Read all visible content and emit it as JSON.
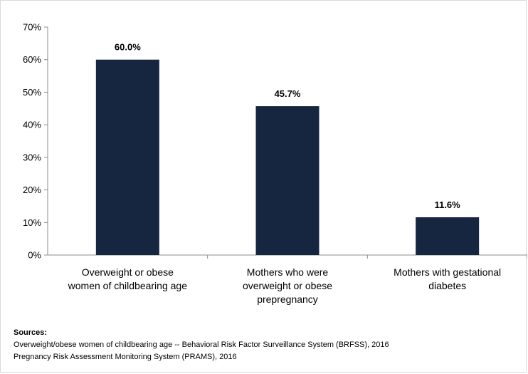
{
  "chart_data": {
    "type": "bar",
    "categories": [
      [
        "Overweight or obese",
        "women of childbearing age"
      ],
      [
        "Mothers who were",
        "overweight or obese",
        "prepregnancy"
      ],
      [
        "Mothers with gestational",
        "diabetes"
      ]
    ],
    "values": [
      60.0,
      45.7,
      11.6
    ],
    "data_labels": [
      "60.0%",
      "45.7%",
      "11.6%"
    ],
    "ylim": [
      0,
      70
    ],
    "yticks": [
      "0%",
      "10%",
      "20%",
      "30%",
      "40%",
      "50%",
      "60%",
      "70%"
    ],
    "bar_color": "#162640",
    "grid": false,
    "title": "",
    "xlabel": "",
    "ylabel": ""
  },
  "sources": {
    "title": "Sources:",
    "lines": [
      "Overweight/obese women of childbearing age -- Behavioral Risk Factor Surveillance System (BRFSS), 2016",
      "Pregnancy Risk Assessment Monitoring System (PRAMS), 2016"
    ]
  }
}
